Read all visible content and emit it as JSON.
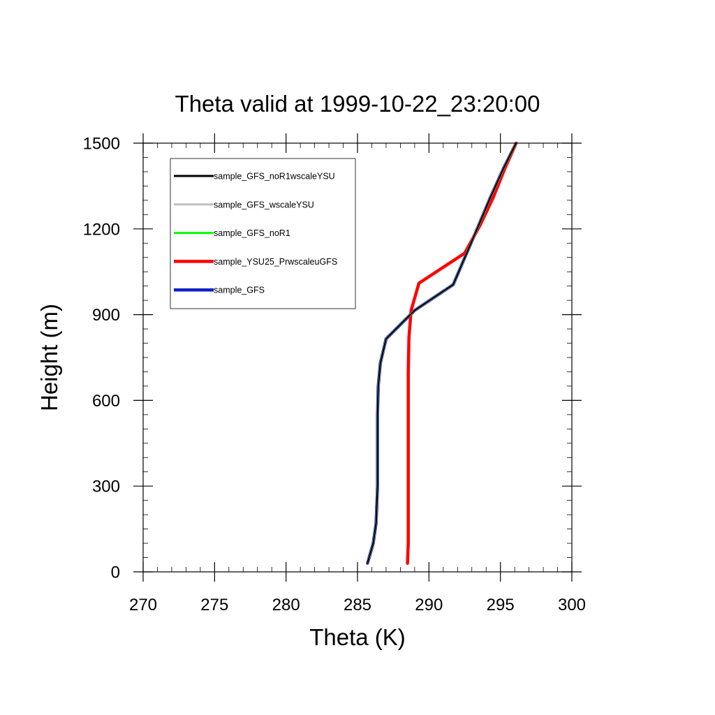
{
  "chart_data": {
    "type": "line",
    "title": "Theta valid at 1999-10-22_23:20:00",
    "xlabel": "Theta (K)",
    "ylabel": "Height (m)",
    "xlim": [
      270,
      300
    ],
    "ylim": [
      0,
      1500
    ],
    "x_ticks": [
      270,
      275,
      280,
      285,
      290,
      295,
      300
    ],
    "x_tick_labels": [
      "270",
      "275",
      "280",
      "285",
      "290",
      "295",
      "300"
    ],
    "y_ticks": [
      0,
      300,
      600,
      900,
      1200,
      1500
    ],
    "y_tick_labels": [
      "0",
      "300",
      "600",
      "900",
      "1200",
      "1500"
    ],
    "x_minor_step": 1,
    "y_minor_step": 50,
    "grid": false,
    "legend_position": "top-left",
    "series": [
      {
        "name": "sample_GFS_noR1wscaleYSU",
        "color": "#000000",
        "points": [
          [
            285.7,
            30
          ],
          [
            286.1,
            100
          ],
          [
            286.3,
            170
          ],
          [
            286.4,
            300
          ],
          [
            286.4,
            450
          ],
          [
            286.4,
            550
          ],
          [
            286.45,
            650
          ],
          [
            286.6,
            730
          ],
          [
            287.0,
            815
          ],
          [
            289.0,
            915
          ],
          [
            291.7,
            1005
          ],
          [
            292.6,
            1110
          ],
          [
            293.5,
            1215
          ],
          [
            294.3,
            1310
          ],
          [
            295.2,
            1410
          ],
          [
            296.1,
            1500
          ]
        ]
      },
      {
        "name": "sample_GFS_wscaleYSU",
        "color": "#c0c0c0",
        "points": [
          [
            285.7,
            30
          ],
          [
            286.1,
            100
          ],
          [
            286.3,
            170
          ],
          [
            286.4,
            300
          ],
          [
            286.4,
            450
          ],
          [
            286.4,
            550
          ],
          [
            286.45,
            650
          ],
          [
            286.6,
            730
          ],
          [
            287.0,
            815
          ],
          [
            289.0,
            915
          ],
          [
            291.7,
            1005
          ],
          [
            292.6,
            1110
          ],
          [
            293.5,
            1215
          ],
          [
            294.3,
            1310
          ],
          [
            295.2,
            1410
          ],
          [
            296.1,
            1500
          ]
        ]
      },
      {
        "name": "sample_GFS_noR1",
        "color": "#00ff00",
        "points": [
          [
            285.7,
            30
          ],
          [
            286.1,
            100
          ],
          [
            286.3,
            170
          ],
          [
            286.4,
            300
          ],
          [
            286.4,
            450
          ],
          [
            286.4,
            550
          ],
          [
            286.45,
            650
          ],
          [
            286.6,
            730
          ],
          [
            287.0,
            815
          ],
          [
            289.0,
            915
          ],
          [
            291.7,
            1005
          ],
          [
            292.6,
            1110
          ],
          [
            293.5,
            1215
          ],
          [
            294.3,
            1310
          ],
          [
            295.2,
            1410
          ],
          [
            296.1,
            1500
          ]
        ]
      },
      {
        "name": "sample_YSU25_PrwscaleuGFS",
        "color": "#ff0000",
        "points": [
          [
            288.5,
            30
          ],
          [
            288.55,
            100
          ],
          [
            288.55,
            300
          ],
          [
            288.55,
            500
          ],
          [
            288.55,
            700
          ],
          [
            288.6,
            820
          ],
          [
            288.75,
            915
          ],
          [
            289.3,
            1010
          ],
          [
            292.5,
            1115
          ],
          [
            293.6,
            1215
          ],
          [
            294.5,
            1310
          ],
          [
            295.3,
            1410
          ],
          [
            296.1,
            1500
          ]
        ]
      },
      {
        "name": "sample_GFS",
        "color": "#1020c8",
        "points": [
          [
            285.7,
            30
          ],
          [
            286.1,
            100
          ],
          [
            286.3,
            170
          ],
          [
            286.4,
            300
          ],
          [
            286.4,
            450
          ],
          [
            286.4,
            550
          ],
          [
            286.45,
            650
          ],
          [
            286.6,
            730
          ],
          [
            287.0,
            815
          ],
          [
            289.0,
            915
          ],
          [
            291.7,
            1005
          ],
          [
            292.6,
            1110
          ],
          [
            293.5,
            1215
          ],
          [
            294.3,
            1310
          ],
          [
            295.2,
            1410
          ],
          [
            296.1,
            1500
          ]
        ]
      }
    ],
    "legend_order": [
      0,
      1,
      2,
      3,
      4
    ]
  }
}
